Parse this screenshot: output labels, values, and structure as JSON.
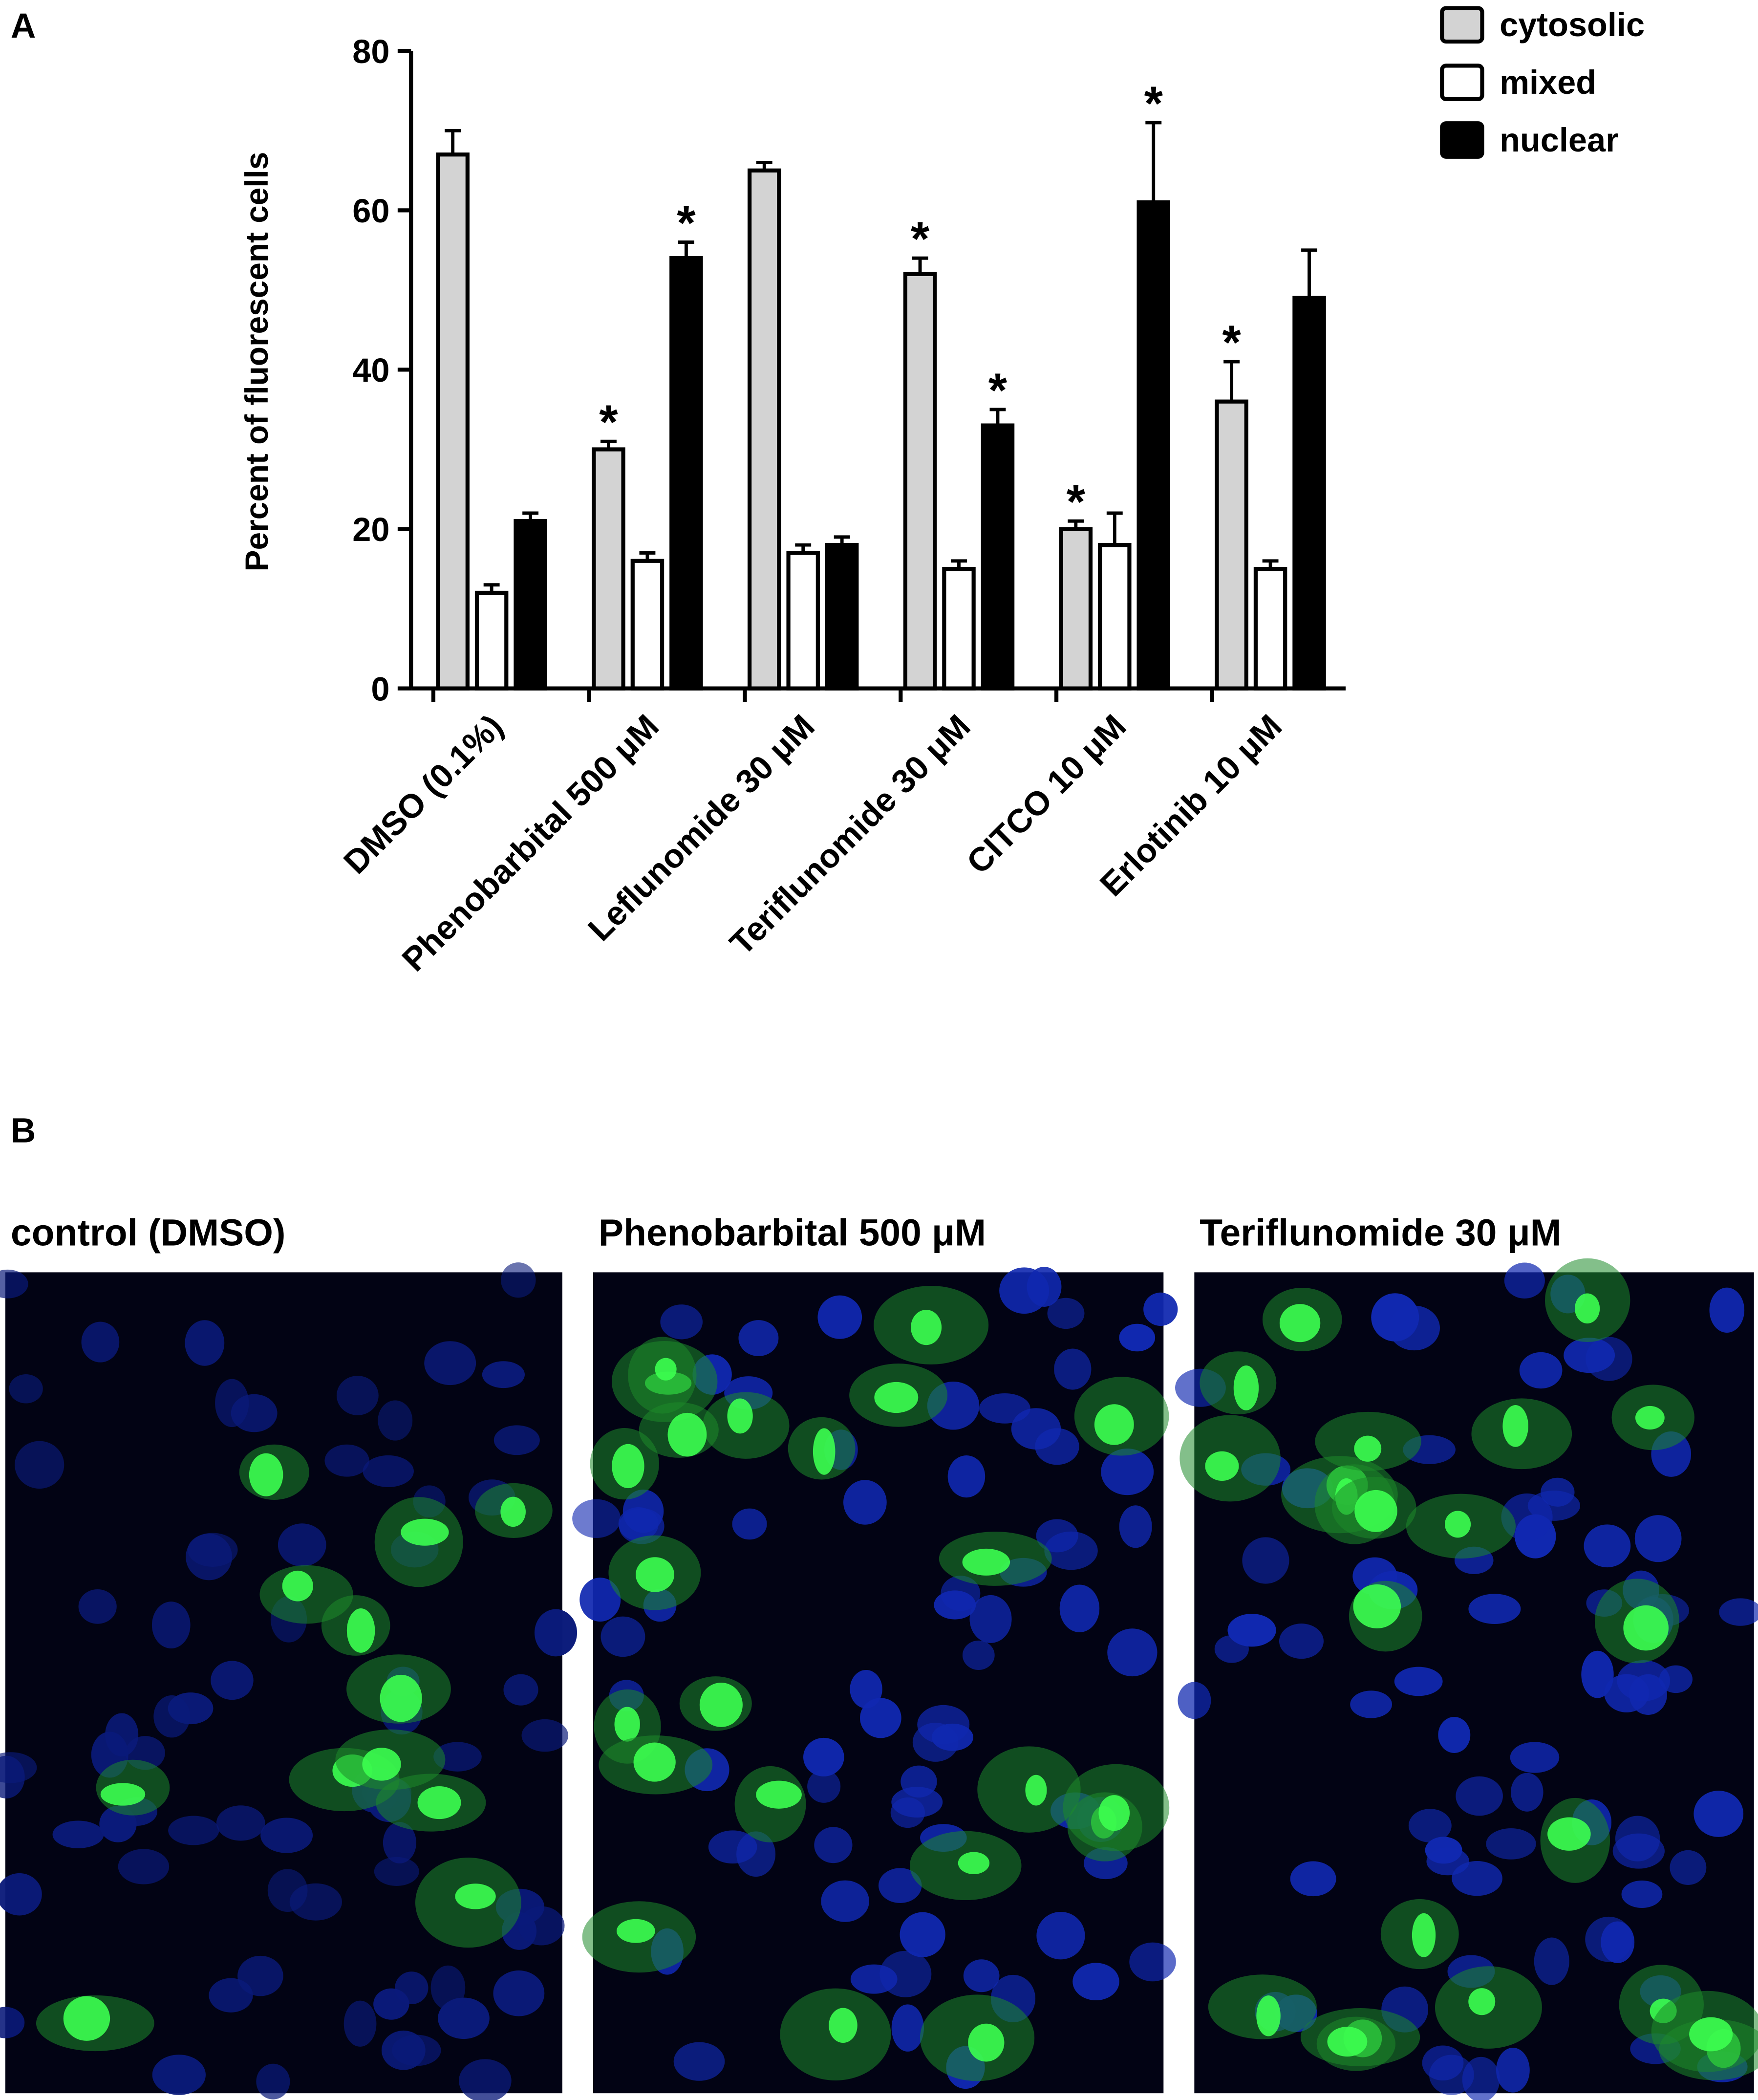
{
  "chart_data": {
    "type": "bar",
    "ylabel": "Percent of fluorescent cells",
    "categories": [
      "DMSO (0.1%)",
      "Phenobarbital 500  μM",
      "Leflunomide 30  μM",
      "Teriflunomide 30  μM",
      "CITCO 10 μM",
      "Erlotinib 10 μM"
    ],
    "series": [
      {
        "name": "cytosolic",
        "color": "#d3d3d3",
        "values": [
          67,
          30,
          65,
          52,
          20,
          36
        ],
        "errors": [
          3,
          1,
          1,
          2,
          1,
          5
        ],
        "marks": [
          null,
          "*",
          null,
          "*",
          "*",
          "*"
        ]
      },
      {
        "name": "mixed",
        "color": "#ffffff",
        "values": [
          12,
          16,
          17,
          15,
          18,
          15
        ],
        "errors": [
          1,
          1,
          1,
          1,
          4,
          1
        ]
      },
      {
        "name": "nuclear",
        "color": "#000000",
        "values": [
          21,
          54,
          18,
          33,
          61,
          49
        ],
        "errors": [
          1,
          2,
          1,
          2,
          10,
          6
        ],
        "marks": [
          null,
          "*",
          null,
          "*",
          "*",
          null
        ]
      }
    ],
    "ylim": [
      0,
      80
    ],
    "yticks": [
      0,
      20,
      40,
      60,
      80
    ],
    "grid": false,
    "legend": "top-right"
  },
  "panel_labels": [
    "A",
    "B"
  ],
  "images": [
    {
      "caption": "control (DMSO)"
    },
    {
      "caption": "Phenobarbital  500 μM"
    },
    {
      "caption": "Teriflunomide  30 μM"
    }
  ]
}
